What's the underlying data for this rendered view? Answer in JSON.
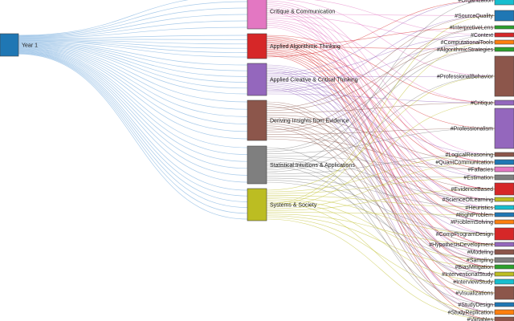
{
  "chart_data": {
    "type": "sankey",
    "columns": [
      {
        "nodes": [
          {
            "label": "Year 1",
            "color": "#1f77b4"
          }
        ]
      },
      {
        "nodes": [
          {
            "label": "Critique & Communication",
            "color": "#e377c2"
          },
          {
            "label": "Applied Algorithmic Thinking",
            "color": "#d62728"
          },
          {
            "label": "Applied Creative & Critical Thinking",
            "color": "#9467bd"
          },
          {
            "label": "Deriving Insights from Evidence",
            "color": "#8c564b"
          },
          {
            "label": "Statistical Intuitions & Applications",
            "color": "#7f7f7f"
          },
          {
            "label": "Systems & Society",
            "color": "#bcbd22"
          }
        ]
      },
      {
        "nodes": [
          {
            "label": "#Organization",
            "color": "#17becf"
          },
          {
            "label": "#SourceQuality",
            "color": "#1f77b4"
          },
          {
            "label": "#InterpretiveLens",
            "color": "#2ca02c"
          },
          {
            "label": "#Context",
            "color": "#d62728"
          },
          {
            "label": "#ComputationalTools",
            "color": "#ff7f0e"
          },
          {
            "label": "#AlgorithmicStrategies",
            "color": "#2ca02c"
          },
          {
            "label": "#ProfessionalBehavior",
            "color": "#8c564b"
          },
          {
            "label": "#Critique",
            "color": "#9467bd"
          },
          {
            "label": "#Professionalism",
            "color": "#9467bd"
          },
          {
            "label": "#LogicalReasoning",
            "color": "#8c564b"
          },
          {
            "label": "#QuantCommunication",
            "color": "#1f77b4"
          },
          {
            "label": "#Fallacies",
            "color": "#e377c2"
          },
          {
            "label": "#Estimation",
            "color": "#7f7f7f"
          },
          {
            "label": "#EvidenceBased",
            "color": "#d62728"
          },
          {
            "label": "#ScienceOfLearning",
            "color": "#bcbd22"
          },
          {
            "label": "#Heuristics",
            "color": "#17becf"
          },
          {
            "label": "#RightProblem",
            "color": "#1f77b4"
          },
          {
            "label": "#ProblemSolving",
            "color": "#ff7f0e"
          },
          {
            "label": "#CompProgramDesign",
            "color": "#d62728"
          },
          {
            "label": "#HypothesisDevelopment",
            "color": "#9467bd"
          },
          {
            "label": "#Modeling",
            "color": "#8c564b"
          },
          {
            "label": "#Sampling",
            "color": "#7f7f7f"
          },
          {
            "label": "#BiasMitigation",
            "color": "#2ca02c"
          },
          {
            "label": "#InterventionalStudy",
            "color": "#bcbd22"
          },
          {
            "label": "#InterviewStudy",
            "color": "#17becf"
          },
          {
            "label": "#Visualizations",
            "color": "#8c564b"
          },
          {
            "label": "#StudyDesign",
            "color": "#1f77b4"
          },
          {
            "label": "#StudyReplication",
            "color": "#ff7f0e"
          },
          {
            "label": "#Variables",
            "color": "#8c564b"
          }
        ]
      }
    ],
    "links_year1": [
      {
        "target": "Critique & Communication",
        "color": "#6fa8dc"
      },
      {
        "target": "Applied Algorithmic Thinking",
        "color": "#6fa8dc"
      },
      {
        "target": "Applied Creative & Critical Thinking",
        "color": "#6fa8dc"
      },
      {
        "target": "Deriving Insights from Evidence",
        "color": "#6fa8dc"
      },
      {
        "target": "Statistical Intuitions & Applications",
        "color": "#6fa8dc"
      },
      {
        "target": "Systems & Society",
        "color": "#6fa8dc"
      }
    ]
  }
}
